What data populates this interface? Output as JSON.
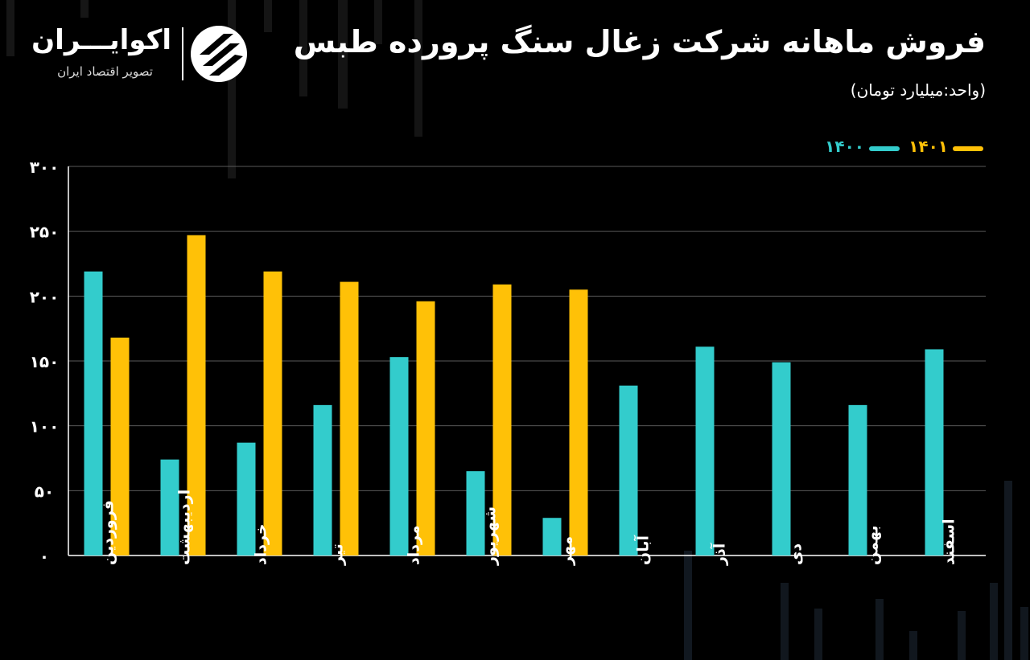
{
  "header": {
    "title": "فروش ماهانه شرکت زغال سنگ پرورده طبس",
    "subtitle": "(واحد:میلیارد تومان)"
  },
  "brand": {
    "name": "اکوایـــران",
    "tagline": "تصویر اقتصاد ایران"
  },
  "colors": {
    "background": "#000000",
    "series_1400": "#33CCCC",
    "series_1401": "#FFC107",
    "grid": "#5a5a5a",
    "text": "#ffffff"
  },
  "chart_data": {
    "type": "bar",
    "categories": [
      "فروردین",
      "اردیبهشت",
      "خرداد",
      "تیر",
      "مرداد",
      "شهریور",
      "مهر",
      "آبان",
      "آذر",
      "دی",
      "بهمن",
      "اسفند"
    ],
    "series": [
      {
        "name": "۱۴۰۰",
        "color": "#33CCCC",
        "values": [
          219,
          74,
          87,
          116,
          153,
          65,
          29,
          131,
          161,
          149,
          116,
          159
        ]
      },
      {
        "name": "۱۴۰۱",
        "color": "#FFC107",
        "values": [
          168,
          247,
          219,
          211,
          196,
          209,
          205,
          null,
          null,
          null,
          null,
          null
        ]
      }
    ],
    "yticks": [
      "۳۰۰",
      "۲۵۰",
      "۲۰۰",
      "۱۵۰",
      "۱۰۰",
      "۵۰",
      "۰"
    ],
    "ylim": [
      0,
      300
    ],
    "grid": true,
    "legend": "top-right"
  }
}
